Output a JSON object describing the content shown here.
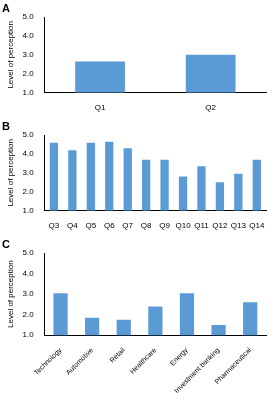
{
  "chart_data": [
    {
      "type": "bar",
      "title": "A",
      "y_label": "Level of perception",
      "categories": [
        "Q1",
        "Q2"
      ],
      "values": [
        2.65,
        3.0
      ],
      "color": "#5b9bd5",
      "ylim": [
        1,
        5
      ],
      "yticks": [
        {
          "value": 1,
          "label": "1.0"
        },
        {
          "value": 2,
          "label": "2.0"
        },
        {
          "value": 3,
          "label": "3.0"
        },
        {
          "value": 4,
          "label": "4.0"
        },
        {
          "value": 5,
          "label": "5.0"
        }
      ],
      "grid": false
    },
    {
      "type": "bar",
      "title": "B",
      "y_label": "Level of perception",
      "categories": [
        "Q3",
        "Q4",
        "Q5",
        "Q6",
        "Q7",
        "Q8",
        "Q9",
        "Q10",
        "Q11",
        "Q12",
        "Q13",
        "Q14"
      ],
      "values": [
        4.6,
        4.2,
        4.6,
        4.65,
        4.3,
        3.7,
        3.7,
        2.8,
        3.35,
        2.5,
        2.95,
        3.7
      ],
      "color": "#5b9bd5",
      "ylim": [
        1,
        5
      ],
      "yticks": [
        {
          "value": 1,
          "label": "1.0"
        },
        {
          "value": 2,
          "label": "2.0"
        },
        {
          "value": 3,
          "label": "3.0"
        },
        {
          "value": 4,
          "label": "4.0"
        },
        {
          "value": 5,
          "label": "5.0"
        }
      ],
      "grid": false
    },
    {
      "type": "bar",
      "title": "C",
      "y_label": "Level of perception",
      "categories": [
        "Technology",
        "Automotive",
        "Retail",
        "Healthcare",
        "Energy",
        "Investment banking",
        "Pharmaceutical"
      ],
      "values": [
        3.05,
        1.85,
        1.75,
        2.4,
        3.05,
        1.5,
        2.6
      ],
      "color": "#5b9bd5",
      "ylim": [
        1,
        5
      ],
      "yticks": [
        {
          "value": 1,
          "label": "1.0"
        },
        {
          "value": 2,
          "label": "2.0"
        },
        {
          "value": 3,
          "label": "3.0"
        },
        {
          "value": 4,
          "label": "4.0"
        },
        {
          "value": 5,
          "label": "5.0"
        }
      ],
      "grid": false
    }
  ]
}
